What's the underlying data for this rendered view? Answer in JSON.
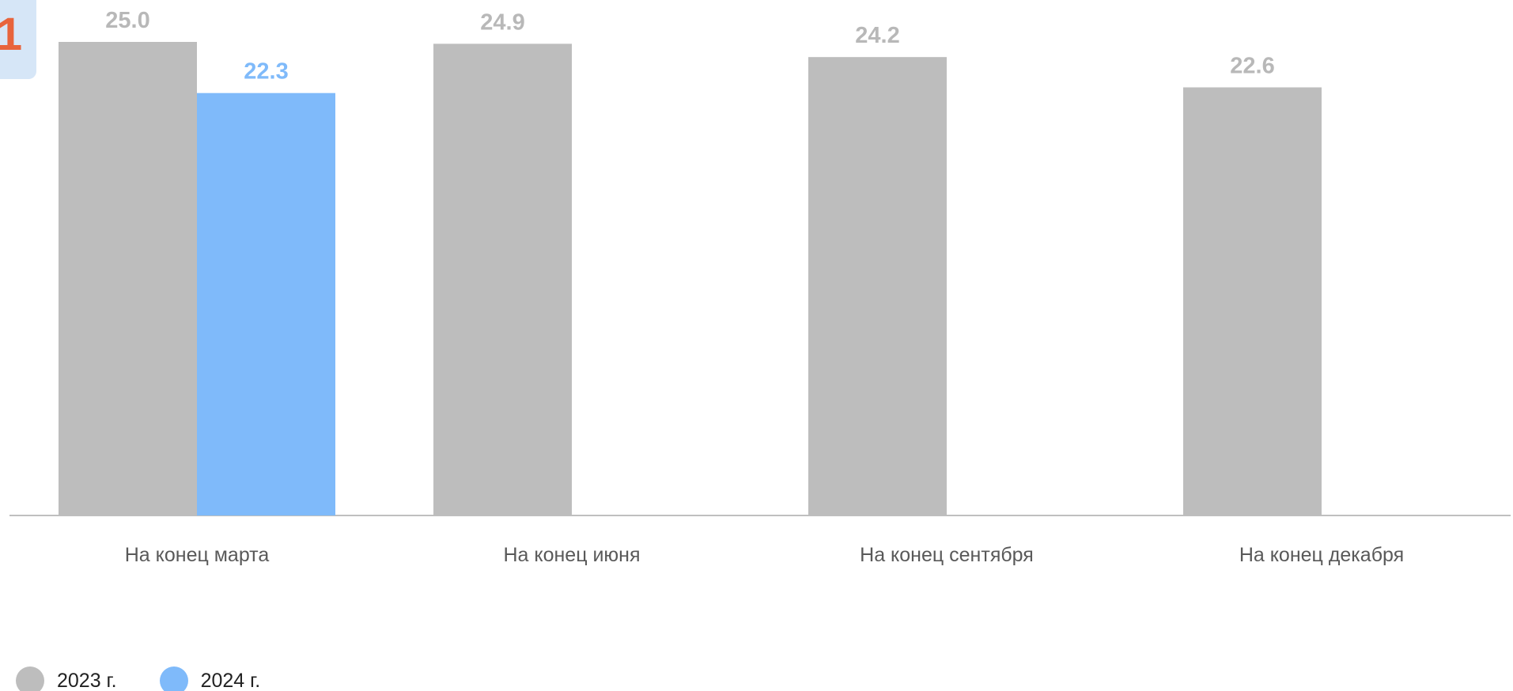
{
  "corner_badge": {
    "text": "1"
  },
  "chart_data": {
    "type": "bar",
    "categories": [
      "На конец марта",
      "На конец июня",
      "На конец сентября",
      "На конец декабря"
    ],
    "series": [
      {
        "name": "2023 г.",
        "values": [
          25.0,
          24.9,
          24.2,
          22.6
        ],
        "color": "#bdbdbd",
        "label_color": "#b8b8b8"
      },
      {
        "name": "2024 г.",
        "values": [
          22.3,
          null,
          null,
          null
        ],
        "color": "#7fbafa",
        "label_color": "#7fbafa"
      }
    ],
    "ylim": [
      0,
      25.0
    ],
    "grid": false,
    "legend": "bottom-left",
    "axis_color": "#bfbfbf",
    "tick_label_color": "#595959"
  }
}
